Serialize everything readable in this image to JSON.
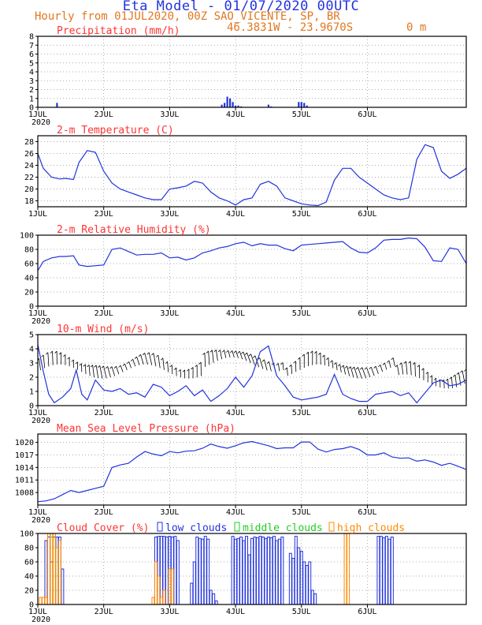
{
  "header": {
    "title": "Eta Model - 01/07/2020 00UTC",
    "subtitle": "Hourly from 01JUL2020, 00Z  SAO_VICENTE, SP, BR",
    "coords": "46.3831W - 23.9670S",
    "elevation": "0  m"
  },
  "x_axis": {
    "ticks": [
      "1JUL",
      "2JUL",
      "3JUL",
      "4JUL",
      "5JUL",
      "6JUL"
    ],
    "year": "2020"
  },
  "colors": {
    "title": "#ff3333",
    "line": "#2233dd",
    "frame": "#000000",
    "grid": "#909090",
    "low": "#2233dd",
    "mid": "#22cc22",
    "high": "#ff8800",
    "wind_arrow": "#000000"
  },
  "chart_data": [
    {
      "id": "precip",
      "type": "bar",
      "title": "Precipitation (mm/h)",
      "ylim": [
        0,
        8
      ],
      "yticks": [
        0,
        1,
        2,
        3,
        4,
        5,
        6,
        7,
        8
      ],
      "show_year": true,
      "x_unit": "hours since 01JUL2020 00Z",
      "x": [
        7,
        67,
        68,
        69,
        70,
        71,
        72,
        73,
        74,
        84,
        85,
        95,
        96,
        97,
        98
      ],
      "values": [
        0.5,
        0.3,
        0.5,
        1.2,
        1.0,
        0.6,
        0.2,
        0.2,
        0.1,
        0.3,
        0.1,
        0.6,
        0.6,
        0.5,
        0.2
      ]
    },
    {
      "id": "temp",
      "type": "line",
      "title": "2-m Temperature (C)",
      "ylim": [
        17,
        29
      ],
      "yticks": [
        18,
        20,
        22,
        24,
        26,
        28
      ],
      "show_year": false,
      "x": [
        0,
        2,
        5,
        8,
        10,
        13,
        15,
        18,
        21,
        24,
        27,
        30,
        33,
        36,
        39,
        42,
        45,
        48,
        51,
        54,
        57,
        60,
        63,
        66,
        69,
        72,
        75,
        78,
        81,
        84,
        87,
        90,
        93,
        96,
        99,
        102,
        105,
        108,
        111,
        114,
        117,
        120,
        123,
        126,
        129,
        132,
        135,
        138,
        141,
        144,
        147,
        150,
        153,
        156,
        159
      ],
      "values": [
        26,
        23.5,
        22,
        21.7,
        21.8,
        21.6,
        24.5,
        26.5,
        26.2,
        23,
        21,
        20,
        19.5,
        19,
        18.5,
        18.2,
        18.2,
        20,
        20.2,
        20.5,
        21.3,
        21,
        19.5,
        18.5,
        18,
        17.3,
        18.2,
        18.5,
        20.8,
        21.3,
        20.5,
        18.5,
        18,
        17.5,
        17.3,
        17.2,
        17.8,
        21.5,
        23.5,
        23.5,
        22,
        21,
        20,
        19,
        18.5,
        18.2,
        18.5,
        25,
        27.5,
        27,
        23,
        21.8,
        22.5,
        23.5,
        25
      ]
    },
    {
      "id": "rh",
      "type": "line",
      "title": "2-m Relative Humidity (%)",
      "ylim": [
        0,
        100
      ],
      "yticks": [
        0,
        20,
        40,
        60,
        80,
        100
      ],
      "show_year": true,
      "x": [
        0,
        2,
        5,
        8,
        10,
        13,
        15,
        18,
        21,
        24,
        27,
        30,
        33,
        36,
        39,
        42,
        45,
        48,
        51,
        54,
        57,
        60,
        63,
        66,
        69,
        72,
        75,
        78,
        81,
        84,
        87,
        90,
        93,
        96,
        99,
        102,
        105,
        108,
        111,
        114,
        117,
        120,
        123,
        126,
        129,
        132,
        135,
        138,
        141,
        144,
        147,
        150,
        153,
        156,
        159
      ],
      "values": [
        50,
        63,
        68,
        70,
        70,
        71,
        58,
        56,
        57,
        58,
        80,
        82,
        77,
        72,
        73,
        73,
        75,
        68,
        69,
        65,
        68,
        75,
        78,
        82,
        84,
        88,
        90,
        85,
        88,
        86,
        86,
        81,
        78,
        86,
        87,
        88,
        89,
        90,
        91,
        82,
        76,
        75,
        82,
        93,
        94,
        94,
        96,
        95,
        83,
        64,
        63,
        82,
        80,
        60,
        58
      ]
    },
    {
      "id": "wind",
      "type": "line",
      "title": "10-m Wind (m/s)",
      "ylim": [
        0,
        5
      ],
      "yticks": [
        0,
        1,
        2,
        3,
        4,
        5
      ],
      "show_year": true,
      "x": [
        0,
        2,
        4,
        6,
        9,
        12,
        14,
        16,
        18,
        21,
        24,
        27,
        30,
        33,
        36,
        39,
        42,
        45,
        48,
        51,
        54,
        57,
        60,
        63,
        66,
        69,
        72,
        75,
        78,
        81,
        84,
        87,
        90,
        93,
        96,
        99,
        102,
        105,
        108,
        111,
        114,
        117,
        120,
        123,
        126,
        129,
        132,
        135,
        138,
        141,
        144,
        147,
        150,
        153,
        156,
        159
      ],
      "values": [
        4.3,
        2.4,
        0.8,
        0.2,
        0.6,
        1.2,
        2.5,
        0.8,
        0.4,
        1.8,
        1.1,
        1.0,
        1.2,
        0.8,
        0.9,
        0.6,
        1.5,
        1.3,
        0.7,
        1.0,
        1.4,
        0.7,
        1.1,
        0.3,
        0.7,
        1.2,
        2.0,
        1.3,
        2.1,
        3.8,
        4.2,
        2.1,
        1.4,
        0.6,
        0.4,
        0.5,
        0.6,
        0.8,
        2.2,
        0.8,
        0.5,
        0.3,
        0.3,
        0.8,
        0.9,
        1.0,
        0.7,
        0.9,
        0.2,
        0.9,
        1.6,
        1.8,
        1.4,
        1.5,
        1.8,
        1.5
      ],
      "arrows": {
        "x_start": 1,
        "x_end": 158,
        "step": 1.5
      }
    },
    {
      "id": "mslp",
      "type": "line",
      "title": "Mean Sea Level Pressure (hPa)",
      "ylim": [
        1005,
        1022
      ],
      "yticks": [
        1008,
        1011,
        1014,
        1017,
        1020
      ],
      "show_year": true,
      "x": [
        0,
        3,
        6,
        9,
        12,
        15,
        18,
        21,
        24,
        27,
        30,
        33,
        36,
        39,
        42,
        45,
        48,
        51,
        54,
        57,
        60,
        63,
        66,
        69,
        72,
        75,
        78,
        81,
        84,
        87,
        90,
        93,
        96,
        99,
        102,
        105,
        108,
        111,
        114,
        117,
        120,
        123,
        126,
        129,
        132,
        135,
        138,
        141,
        144,
        147,
        150,
        153,
        156,
        159
      ],
      "values": [
        1005.8,
        1006,
        1006.5,
        1007.5,
        1008.5,
        1008,
        1008.5,
        1009,
        1009.5,
        1014,
        1014.6,
        1015,
        1016.5,
        1017.8,
        1017.2,
        1016.8,
        1017.8,
        1017.5,
        1017.9,
        1018,
        1018.6,
        1019.6,
        1019,
        1018.6,
        1019.2,
        1019.9,
        1020.2,
        1019.7,
        1019.2,
        1018.5,
        1018.7,
        1018.7,
        1020.1,
        1020.1,
        1018.4,
        1017.7,
        1018.3,
        1018.5,
        1019,
        1018.3,
        1017,
        1017,
        1017.5,
        1016.5,
        1016.2,
        1016.3,
        1015.5,
        1015.8,
        1015.3,
        1014.5,
        1015,
        1014.3,
        1013.5,
        1014.5
      ]
    },
    {
      "id": "cloud",
      "type": "bar",
      "title": "Cloud Cover (%)",
      "legend": [
        "low clouds",
        "middle clouds",
        "high clouds"
      ],
      "ylim": [
        0,
        100
      ],
      "yticks": [
        0,
        20,
        40,
        60,
        80,
        100
      ],
      "show_year": true,
      "low": {
        "x": [
          3,
          4,
          5,
          6,
          7,
          8,
          9,
          43,
          44,
          45,
          46,
          47,
          48,
          49,
          50,
          51,
          56,
          57,
          58,
          59,
          60,
          61,
          62,
          63,
          64,
          65,
          71,
          72,
          73,
          74,
          75,
          76,
          77,
          78,
          79,
          80,
          81,
          82,
          83,
          84,
          85,
          86,
          87,
          88,
          89,
          92,
          93,
          94,
          95,
          96,
          97,
          98,
          99,
          100,
          101,
          124,
          125,
          126,
          127,
          128,
          129
        ],
        "values": [
          90,
          95,
          60,
          95,
          95,
          95,
          50,
          95,
          96,
          96,
          96,
          95,
          96,
          95,
          96,
          90,
          30,
          60,
          95,
          93,
          92,
          96,
          92,
          20,
          15,
          5,
          96,
          92,
          93,
          95,
          90,
          96,
          70,
          93,
          95,
          94,
          96,
          95,
          93,
          95,
          94,
          96,
          90,
          92,
          95,
          72,
          65,
          96,
          80,
          75,
          60,
          55,
          60,
          20,
          15,
          96,
          96,
          94,
          96,
          92,
          95
        ]
      },
      "mid": {
        "x": [
          5,
          6,
          7
        ],
        "values": [
          95,
          100,
          80
        ]
      },
      "high": {
        "x": [
          1,
          2,
          3,
          4,
          5,
          6,
          7,
          8,
          42,
          43,
          44,
          45,
          46,
          48,
          49,
          112,
          113
        ],
        "values": [
          10,
          10,
          10,
          100,
          100,
          100,
          80,
          90,
          10,
          60,
          40,
          10,
          20,
          50,
          50,
          100,
          100
        ]
      }
    }
  ]
}
